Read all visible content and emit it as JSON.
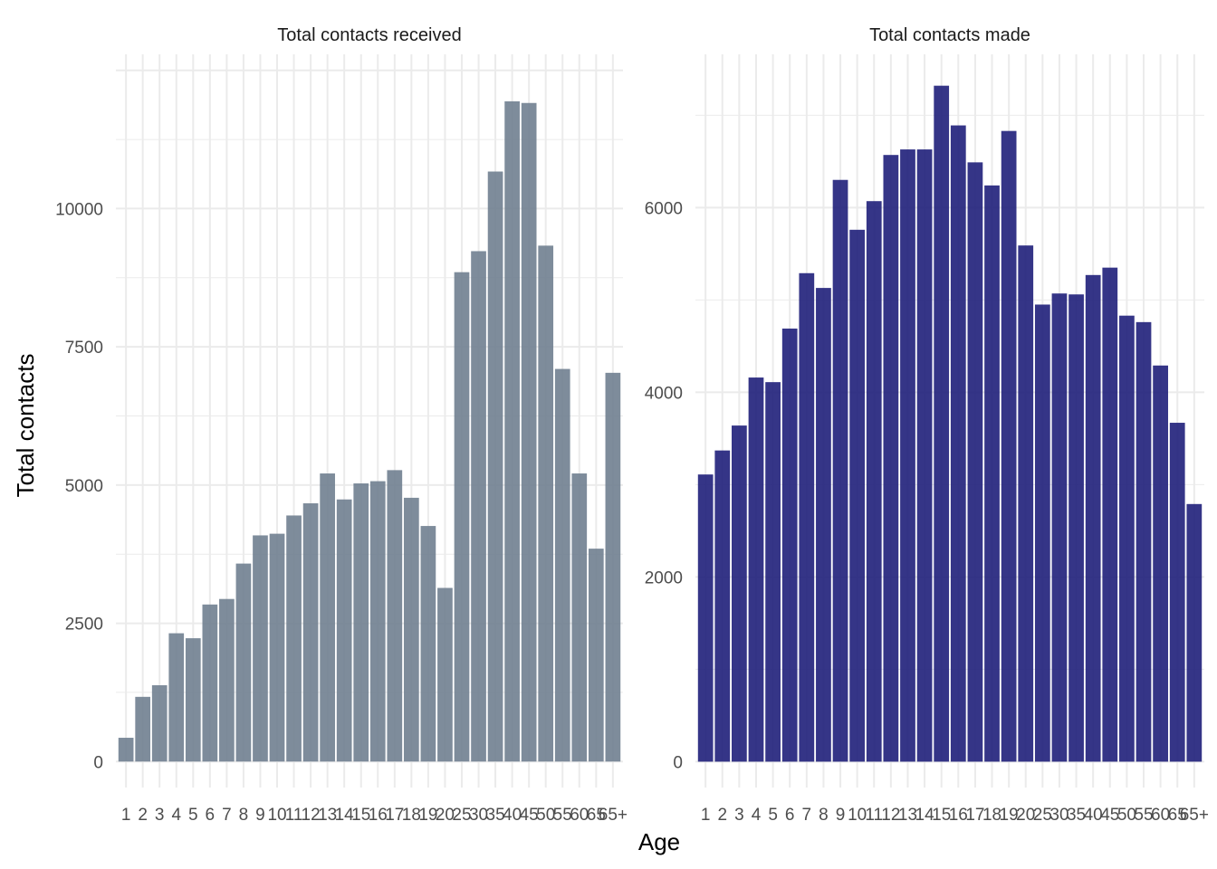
{
  "figure": {
    "ylabel": "Total contacts",
    "xlabel": "Age"
  },
  "chart_data": [
    {
      "type": "bar",
      "title": "Total contacts received",
      "xlabel": "Age",
      "ylabel": "Total contacts",
      "categories": [
        "1",
        "2",
        "3",
        "4",
        "5",
        "6",
        "7",
        "8",
        "9",
        "10",
        "11",
        "12",
        "13",
        "14",
        "15",
        "16",
        "17",
        "18",
        "19",
        "20",
        "25",
        "30",
        "35",
        "40",
        "45",
        "50",
        "55",
        "60",
        "65",
        "65+"
      ],
      "values": [
        430,
        1170,
        1380,
        2320,
        2230,
        2840,
        2940,
        3580,
        4090,
        4120,
        4450,
        4670,
        5210,
        4740,
        5030,
        5070,
        5270,
        4770,
        4260,
        3140,
        8850,
        9230,
        10670,
        11940,
        11910,
        9330,
        7100,
        5210,
        3850,
        7030
      ],
      "yticks": [
        0,
        2500,
        5000,
        7500,
        10000
      ],
      "ylim": [
        -470,
        12790
      ],
      "grid": true,
      "color": "#708090"
    },
    {
      "type": "bar",
      "title": "Total contacts made",
      "xlabel": "Age",
      "ylabel": "Total contacts",
      "categories": [
        "1",
        "2",
        "3",
        "4",
        "5",
        "6",
        "7",
        "8",
        "9",
        "10",
        "11",
        "12",
        "13",
        "14",
        "15",
        "16",
        "17",
        "18",
        "19",
        "20",
        "25",
        "30",
        "35",
        "40",
        "45",
        "50",
        "55",
        "60",
        "65",
        "65+"
      ],
      "values": [
        3110,
        3370,
        3640,
        4160,
        4110,
        4690,
        5290,
        5130,
        6300,
        5760,
        6070,
        6570,
        6630,
        6630,
        7320,
        6890,
        6490,
        6240,
        6830,
        5590,
        4950,
        5070,
        5060,
        5270,
        5350,
        4830,
        4760,
        4290,
        3670,
        2790
      ],
      "yticks": [
        0,
        2000,
        4000,
        6000
      ],
      "ylim": [
        -280,
        7660
      ],
      "grid": true,
      "color": "#1f1f7a"
    }
  ]
}
